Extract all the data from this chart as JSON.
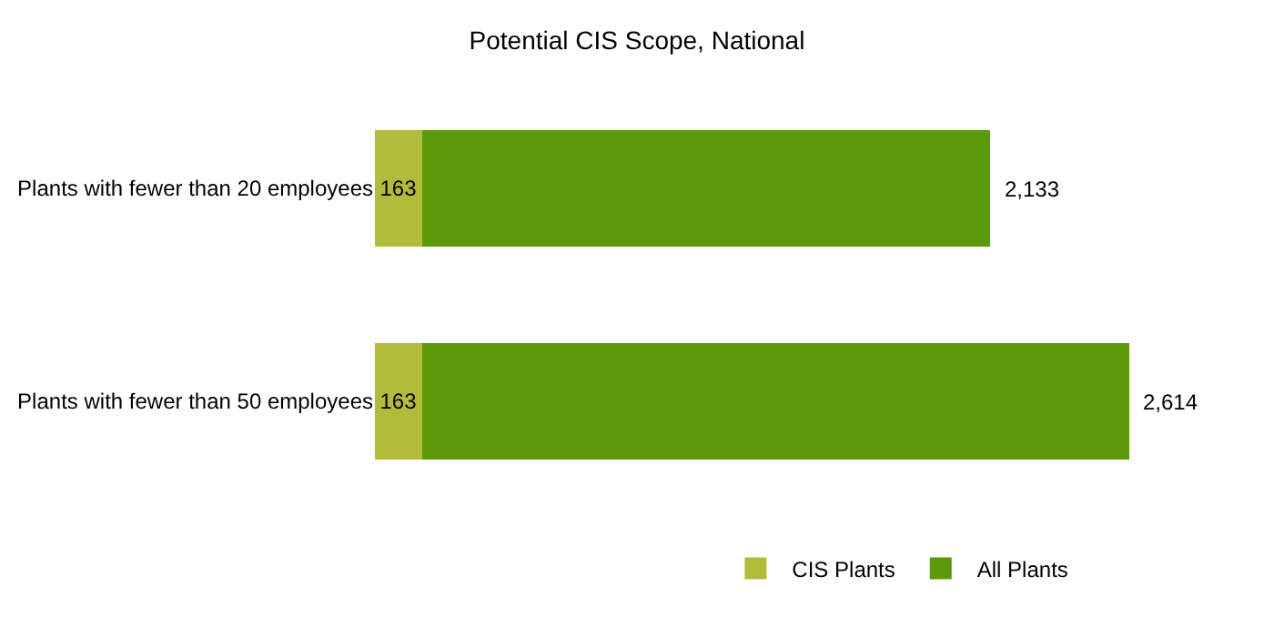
{
  "chart_data": {
    "type": "bar",
    "orientation": "horizontal",
    "stacked": true,
    "title": "Potential CIS Scope, National",
    "categories": [
      "Plants with fewer than 20 employees",
      "Plants with fewer than 50 employees"
    ],
    "series": [
      {
        "name": "CIS Plants",
        "color": "#b3bc3a",
        "values": [
          163,
          163
        ],
        "value_labels": [
          "163",
          "163"
        ]
      },
      {
        "name": "All Plants",
        "color": "#5b9a0a",
        "values": [
          1970,
          2451
        ]
      }
    ],
    "totals": [
      "2,133",
      "2,614"
    ],
    "legend": "bottom"
  }
}
